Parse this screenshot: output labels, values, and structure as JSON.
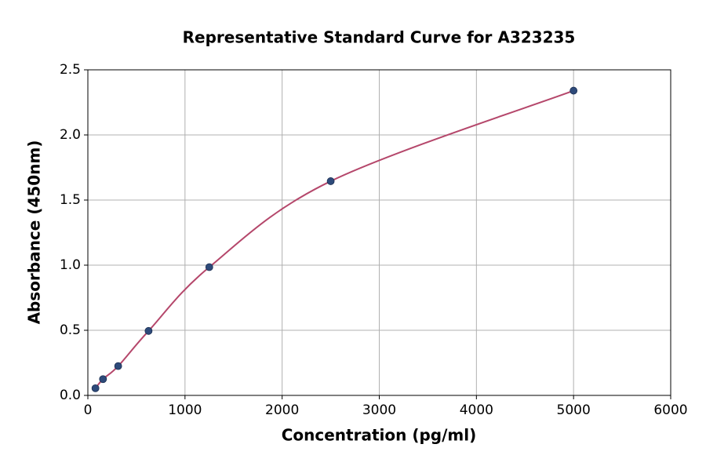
{
  "chart_data": {
    "type": "scatter",
    "title": "Representative Standard Curve for A323235",
    "x_label": "Concentration (pg/ml)",
    "y_label": "Absorbance (450nm)",
    "series": [
      {
        "color": "#2e4a7a",
        "line_color": "#b5476b",
        "x": [
          78,
          156,
          312,
          625,
          1250,
          2500,
          5000
        ],
        "values": [
          0.055,
          0.125,
          0.225,
          0.495,
          0.985,
          1.645,
          2.34
        ]
      }
    ],
    "xlim": [
      0,
      6000
    ],
    "xticks": [
      0,
      1000,
      2000,
      3000,
      4000,
      5000,
      6000
    ],
    "ylim": [
      0,
      2.5
    ],
    "yticks": [
      {
        "value": 0,
        "label": "0.0"
      },
      0.5,
      {
        "value": 1,
        "label": "1.0"
      },
      1.5,
      {
        "value": 2,
        "label": "2.0"
      },
      2.5
    ],
    "grid": true
  }
}
